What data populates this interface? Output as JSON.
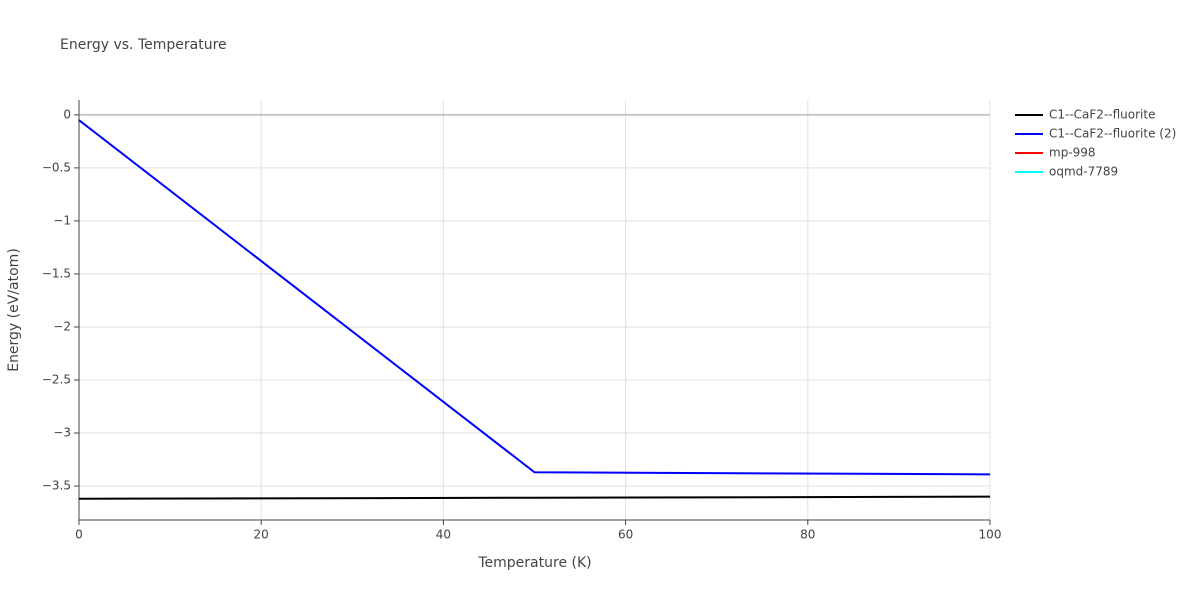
{
  "chart_data": {
    "type": "line",
    "title": "Energy vs. Temperature",
    "x_label": "Temperature (K)",
    "y_label": "Energy (eV/atom)",
    "xlim": [
      0,
      100
    ],
    "xticks": [
      0,
      20,
      40,
      60,
      80,
      100
    ],
    "ylim": [
      -3.82,
      0.14
    ],
    "yticks": [
      0,
      {
        "value": -0.5,
        "label": "−0.5"
      },
      {
        "value": -1,
        "label": "−1"
      },
      {
        "value": -1.5,
        "label": "−1.5"
      },
      {
        "value": -2,
        "label": "−2"
      },
      {
        "value": -2.5,
        "label": "−2.5"
      },
      {
        "value": -3,
        "label": "−3"
      },
      {
        "value": -3.5,
        "label": "−3.5"
      }
    ],
    "grid": true,
    "series": [
      {
        "name": "C1--CaF2--fluorite",
        "color": "#000000",
        "x": [
          0,
          50,
          100
        ],
        "values": [
          -3.62,
          -3.61,
          -3.6
        ]
      },
      {
        "name": "C1--CaF2--fluorite (2)",
        "color": "#0000ff",
        "x": [
          0,
          50,
          100
        ],
        "values": [
          -0.05,
          -3.37,
          -3.39
        ]
      },
      {
        "name": "mp-998",
        "color": "#ff0000",
        "x": [],
        "values": []
      },
      {
        "name": "oqmd-7789",
        "color": "#00ffff",
        "x": [],
        "values": []
      }
    ]
  }
}
